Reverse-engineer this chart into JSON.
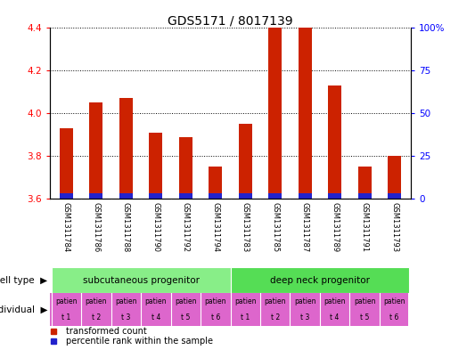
{
  "title": "GDS5171 / 8017139",
  "samples": [
    "GSM1311784",
    "GSM1311786",
    "GSM1311788",
    "GSM1311790",
    "GSM1311792",
    "GSM1311794",
    "GSM1311783",
    "GSM1311785",
    "GSM1311787",
    "GSM1311789",
    "GSM1311791",
    "GSM1311793"
  ],
  "transformed_counts": [
    3.93,
    4.05,
    4.07,
    3.91,
    3.89,
    3.75,
    3.95,
    4.4,
    4.4,
    4.13,
    3.75,
    3.8
  ],
  "blue_bar_height": 0.025,
  "ylim_left": [
    3.6,
    4.4
  ],
  "ylim_right": [
    0,
    100
  ],
  "yticks_left": [
    3.6,
    3.8,
    4.0,
    4.2,
    4.4
  ],
  "yticks_right": [
    0,
    25,
    50,
    75,
    100
  ],
  "ytick_labels_right": [
    "0",
    "25",
    "50",
    "75",
    "100%"
  ],
  "bar_color_red": "#cc2200",
  "bar_color_blue": "#2222cc",
  "cell_type_groups": [
    {
      "label": "subcutaneous progenitor",
      "start": 0,
      "end": 6,
      "color": "#88ee88"
    },
    {
      "label": "deep neck progenitor",
      "start": 6,
      "end": 12,
      "color": "#55dd55"
    }
  ],
  "individual_labels_top": [
    "patien",
    "patien",
    "patien",
    "patien",
    "patien",
    "patien",
    "patien",
    "patien",
    "patien",
    "patien",
    "patien",
    "patien"
  ],
  "individual_labels_bot": [
    "t 1",
    "t 2",
    "t 3",
    "t 4",
    "t 5",
    "t 6",
    "t 1",
    "t 2",
    "t 3",
    "t 4",
    "t 5",
    "t 6"
  ],
  "individual_bg": "#dd66cc",
  "header_bg": "#cccccc",
  "bar_width": 0.45,
  "legend_red_label": "transformed count",
  "legend_blue_label": "percentile rank within the sample",
  "cell_type_label": "cell type",
  "individual_label": "individual",
  "title_fontsize": 10,
  "tick_fontsize": 7.5,
  "sample_fontsize": 6,
  "group_fontsize": 7.5,
  "indiv_fontsize": 5.5,
  "legend_fontsize": 7
}
